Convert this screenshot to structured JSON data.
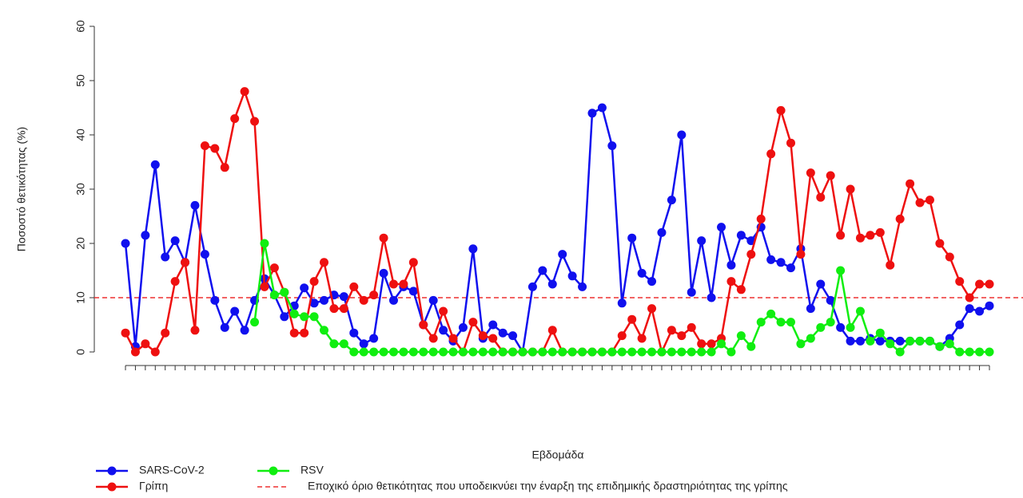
{
  "chart_data": {
    "type": "line",
    "x_label": "Εβδομάδα",
    "y_label": "Ποσοστό θετικότητας (%)",
    "categories": [
      null,
      null,
      null,
      null,
      null,
      null,
      null,
      null,
      null,
      null,
      null,
      null,
      null,
      null,
      null,
      null,
      null,
      null,
      null,
      null,
      null,
      null,
      null,
      null,
      null,
      null,
      null,
      null,
      null,
      null,
      null,
      null,
      null,
      null,
      null,
      null,
      null,
      null,
      null,
      null,
      null,
      null,
      null,
      null,
      null,
      null,
      null,
      null,
      null,
      null,
      null,
      null,
      null,
      null,
      null,
      null,
      null,
      null,
      null,
      null,
      null,
      null,
      null,
      null,
      null,
      null,
      null,
      null,
      null,
      null,
      null,
      null,
      null,
      null,
      null,
      null,
      null,
      null,
      null,
      null,
      null,
      null,
      null,
      null,
      null,
      null,
      null,
      null
    ],
    "ylim": [
      -2.5,
      62.5
    ],
    "yticks": [
      0,
      10,
      20,
      30,
      40,
      50,
      60
    ],
    "series": [
      {
        "name": "SARS-CoV-2",
        "color": "#1010ee",
        "values": [
          20,
          1,
          21.5,
          34.5,
          17.5,
          20.5,
          16.5,
          27,
          18,
          9.5,
          4.5,
          7.5,
          4,
          9.5,
          13.5,
          10.5,
          6.5,
          8.5,
          11.8,
          9,
          9.5,
          10.5,
          10.2,
          3.5,
          1.5,
          2.5,
          14.5,
          9.5,
          12,
          11.2,
          5,
          9.5,
          4,
          2,
          4.5,
          19,
          2.5,
          5,
          3.5,
          3,
          0,
          12,
          15,
          12.5,
          18,
          14,
          12,
          44,
          45,
          38,
          9,
          21,
          14.5,
          13,
          22,
          28,
          40,
          11,
          20.5,
          10,
          23,
          16,
          21.5,
          20.5,
          23,
          17,
          16.5,
          15.5,
          19,
          8,
          12.5,
          9.5,
          4.5,
          2,
          2,
          2.5,
          2,
          2,
          2,
          2,
          2,
          2,
          1,
          2.5,
          5,
          8,
          7.5,
          8.5
        ]
      },
      {
        "name": "Γρίπη",
        "color": "#ee1010",
        "values": [
          3.5,
          0,
          1.5,
          0,
          3.5,
          13,
          16.5,
          4,
          38,
          37.5,
          34,
          43,
          48,
          42.5,
          12,
          15.5,
          11,
          3.5,
          3.5,
          13,
          16.5,
          8,
          8,
          12,
          9.5,
          10.5,
          21,
          12.5,
          12.5,
          16.5,
          5,
          2.5,
          7.5,
          2.5,
          0,
          5.5,
          3,
          2.5,
          0,
          0,
          0,
          0,
          0,
          4,
          0,
          0,
          0,
          0,
          0,
          0,
          3,
          6,
          2.5,
          8,
          0,
          4,
          3,
          4.5,
          1.5,
          1.5,
          2.5,
          13,
          11.5,
          18,
          24.5,
          36.5,
          44.5,
          38.5,
          18,
          33,
          28.5,
          32.5,
          21.5,
          30,
          21,
          21.5,
          22,
          16,
          24.5,
          31,
          27.5,
          28,
          20,
          17.5,
          13,
          10,
          12.5,
          12.5
        ]
      },
      {
        "name": "RSV",
        "color": "#10ee10",
        "values": [
          null,
          null,
          null,
          null,
          null,
          null,
          null,
          null,
          null,
          null,
          null,
          null,
          null,
          5.5,
          20,
          10.5,
          11,
          7,
          6.5,
          6.5,
          4,
          1.5,
          1.5,
          0,
          0,
          0,
          0,
          0,
          0,
          0,
          0,
          0,
          0,
          0,
          0,
          0,
          0,
          0,
          0,
          0,
          0,
          0,
          0,
          0,
          0,
          0,
          0,
          0,
          0,
          0,
          0,
          0,
          0,
          0,
          0,
          0,
          0,
          0,
          0,
          0,
          1.5,
          0,
          3,
          1,
          5.5,
          7,
          5.5,
          5.5,
          1.5,
          2.5,
          4.5,
          5.5,
          15,
          4.5,
          7.5,
          2,
          3.5,
          1.5,
          0,
          2,
          2,
          2,
          1,
          1.5,
          0,
          0,
          0,
          0
        ]
      }
    ],
    "threshold": {
      "value": 10,
      "color": "#ee3030",
      "name": "Εποχικό όριο θετικότητας που υποδεικνύει την έναρξη της επιδημικής δραστηριότητας της γρίπης"
    }
  }
}
